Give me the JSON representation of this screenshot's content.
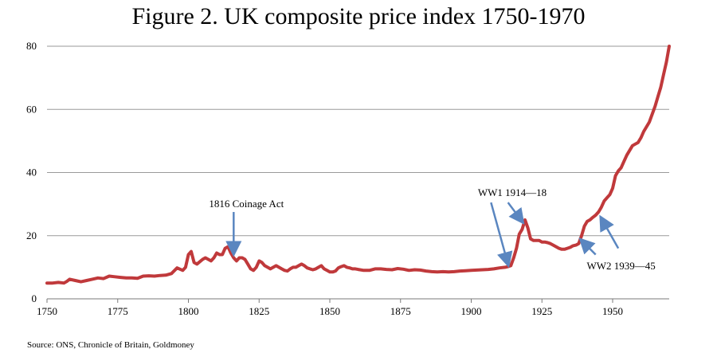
{
  "chart_data": {
    "type": "line",
    "title": "Figure 2. UK composite price index 1750-1970",
    "xlabel": "",
    "ylabel": "",
    "xlim": [
      1750,
      1970
    ],
    "ylim": [
      0,
      80
    ],
    "x_ticks": [
      1750,
      1775,
      1800,
      1825,
      1850,
      1875,
      1900,
      1925,
      1950
    ],
    "y_ticks": [
      0,
      20,
      40,
      60,
      80
    ],
    "grid": "horizontal",
    "legend": "none",
    "line_color": "#c0393b",
    "arrow_color": "#5a86c0",
    "x": [
      1750,
      1752,
      1754,
      1756,
      1757,
      1758,
      1760,
      1762,
      1764,
      1766,
      1768,
      1770,
      1772,
      1774,
      1776,
      1778,
      1780,
      1782,
      1784,
      1786,
      1788,
      1790,
      1792,
      1794,
      1796,
      1798,
      1799,
      1800,
      1801,
      1802,
      1803,
      1805,
      1806,
      1808,
      1809,
      1810,
      1811,
      1812,
      1813,
      1814,
      1815,
      1816,
      1817,
      1818,
      1819,
      1820,
      1821,
      1822,
      1823,
      1824,
      1825,
      1826,
      1827,
      1828,
      1829,
      1830,
      1831,
      1832,
      1833,
      1834,
      1835,
      1836,
      1837,
      1838,
      1839,
      1840,
      1841,
      1842,
      1843,
      1844,
      1845,
      1846,
      1847,
      1848,
      1849,
      1850,
      1851,
      1852,
      1853,
      1854,
      1855,
      1856,
      1857,
      1858,
      1859,
      1860,
      1862,
      1864,
      1866,
      1868,
      1870,
      1872,
      1874,
      1876,
      1878,
      1880,
      1882,
      1884,
      1886,
      1888,
      1890,
      1892,
      1894,
      1896,
      1898,
      1900,
      1902,
      1904,
      1906,
      1908,
      1910,
      1912,
      1913,
      1914,
      1915,
      1916,
      1917,
      1918,
      1919,
      1920,
      1921,
      1922,
      1923,
      1924,
      1925,
      1926,
      1927,
      1928,
      1929,
      1930,
      1931,
      1932,
      1933,
      1934,
      1935,
      1936,
      1937,
      1938,
      1939,
      1940,
      1941,
      1942,
      1943,
      1944,
      1945,
      1946,
      1947,
      1948,
      1949,
      1950,
      1951,
      1952,
      1953,
      1954,
      1955,
      1956,
      1957,
      1958,
      1959,
      1960,
      1961,
      1962,
      1963,
      1964,
      1965,
      1966,
      1967,
      1968,
      1969,
      1970
    ],
    "y": [
      5.0,
      5.0,
      5.2,
      5.0,
      5.5,
      6.2,
      5.8,
      5.4,
      5.8,
      6.2,
      6.6,
      6.4,
      7.2,
      7.0,
      6.8,
      6.6,
      6.6,
      6.5,
      7.2,
      7.3,
      7.2,
      7.4,
      7.5,
      8.0,
      9.8,
      9.0,
      10.0,
      14.0,
      15.0,
      11.5,
      11.0,
      12.5,
      13.0,
      12.0,
      13.0,
      14.5,
      14.0,
      14.0,
      16.0,
      16.5,
      14.5,
      13.0,
      12.0,
      13.0,
      13.0,
      12.5,
      11.0,
      9.5,
      9.0,
      10.0,
      12.0,
      11.5,
      10.5,
      10.0,
      9.5,
      10.0,
      10.5,
      10.0,
      9.5,
      9.0,
      8.8,
      9.5,
      10.0,
      10.0,
      10.5,
      11.0,
      10.5,
      9.8,
      9.5,
      9.2,
      9.5,
      10.0,
      10.5,
      9.5,
      9.0,
      8.5,
      8.5,
      8.8,
      9.8,
      10.2,
      10.5,
      10.0,
      9.8,
      9.5,
      9.5,
      9.3,
      9.0,
      9.0,
      9.5,
      9.5,
      9.3,
      9.2,
      9.6,
      9.4,
      9.0,
      9.2,
      9.1,
      8.8,
      8.6,
      8.5,
      8.6,
      8.5,
      8.6,
      8.8,
      8.9,
      9.0,
      9.1,
      9.2,
      9.3,
      9.5,
      9.8,
      10.0,
      10.2,
      10.5,
      13.0,
      16.0,
      20.5,
      22.0,
      25.0,
      22.5,
      19.0,
      18.5,
      18.5,
      18.5,
      18.0,
      18.0,
      17.8,
      17.5,
      17.0,
      16.5,
      16.0,
      15.7,
      15.7,
      16.0,
      16.3,
      16.8,
      17.0,
      17.5,
      20.0,
      23.0,
      24.5,
      25.0,
      25.8,
      26.5,
      27.5,
      29.0,
      31.0,
      32.0,
      33.0,
      35.0,
      39.0,
      40.5,
      41.5,
      43.5,
      45.5,
      47.0,
      48.5,
      49.0,
      49.5,
      51.0,
      53.0,
      54.5,
      56.0,
      58.5,
      61.0,
      64.0,
      67.0,
      71.0,
      75.0,
      80.0
    ],
    "annotations": [
      {
        "text": "1816 Coinage Act",
        "x": 1816,
        "y": 13.5,
        "label_x": 1820.5,
        "label_y": 29
      },
      {
        "text": "WW1 1914—18",
        "x": 1913,
        "y": 10.5,
        "label_x": 1914.5,
        "label_y": 32.5
      },
      {
        "text": "WW2 1939—45",
        "x": 1939,
        "y": 18.5,
        "label_x": 1953,
        "label_y": 9.3
      }
    ],
    "source": "Source: ONS, Chronicle of Britain, Goldmoney"
  }
}
